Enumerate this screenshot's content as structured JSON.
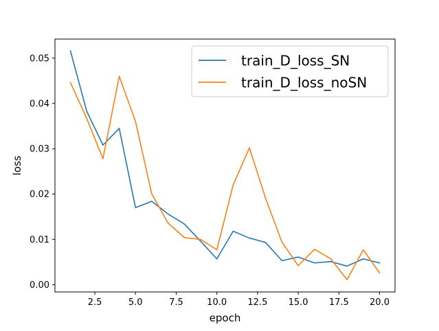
{
  "chart_data": {
    "type": "line",
    "title": "",
    "xlabel": "epoch",
    "ylabel": "loss",
    "xlim": [
      0.05,
      20.95
    ],
    "ylim": [
      -0.0016,
      0.0542
    ],
    "xticks": [
      2.5,
      5.0,
      7.5,
      10.0,
      12.5,
      15.0,
      17.5,
      20.0
    ],
    "xtick_labels": [
      "2.5",
      "5.0",
      "7.5",
      "10.0",
      "12.5",
      "15.0",
      "17.5",
      "20.0"
    ],
    "yticks": [
      0.0,
      0.01,
      0.02,
      0.03,
      0.04,
      0.05
    ],
    "ytick_labels": [
      "0.00",
      "0.01",
      "0.02",
      "0.03",
      "0.04",
      "0.05"
    ],
    "grid": false,
    "legend_position": "top-right",
    "x": [
      1,
      2,
      3,
      4,
      5,
      6,
      7,
      8,
      9,
      10,
      11,
      12,
      13,
      14,
      15,
      16,
      17,
      18,
      19,
      20
    ],
    "series": [
      {
        "name": "train_D_loss_SN",
        "color": "#1f77b4",
        "values": [
          0.0516,
          0.0383,
          0.0308,
          0.0345,
          0.017,
          0.0184,
          0.0156,
          0.0134,
          0.0096,
          0.0057,
          0.0118,
          0.0103,
          0.0093,
          0.0053,
          0.0061,
          0.0048,
          0.0051,
          0.0041,
          0.0057,
          0.0048
        ]
      },
      {
        "name": "train_D_loss_noSN",
        "color": "#ff7f0e",
        "values": [
          0.0446,
          0.0367,
          0.0278,
          0.046,
          0.036,
          0.02,
          0.0136,
          0.0104,
          0.01,
          0.0077,
          0.022,
          0.0302,
          0.019,
          0.0094,
          0.0042,
          0.0078,
          0.0057,
          0.0011,
          0.0077,
          0.0026
        ]
      }
    ]
  }
}
